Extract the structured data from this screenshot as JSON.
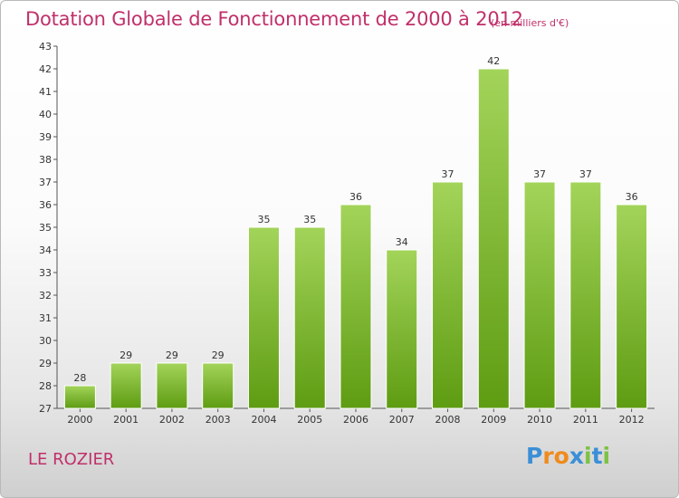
{
  "header": {
    "title": "Dotation Globale de Fonctionnement de 2000 à 2012",
    "subtitle": "(en milliers d'€)"
  },
  "footer": {
    "commune": "LE ROZIER",
    "logo": {
      "letters": [
        "P",
        "r",
        "o",
        "x",
        "i",
        "t",
        "i"
      ],
      "colors": [
        "#3b8fd6",
        "#f08a1c",
        "#f08a1c",
        "#3b8fd6",
        "#7cc244",
        "#3b8fd6",
        "#7cc244"
      ]
    }
  },
  "chart_data": {
    "type": "bar",
    "title": "Dotation Globale de Fonctionnement de 2000 à 2012",
    "subtitle": "(en milliers d'€)",
    "categories": [
      "2000",
      "2001",
      "2002",
      "2003",
      "2004",
      "2005",
      "2006",
      "2007",
      "2008",
      "2009",
      "2010",
      "2011",
      "2012"
    ],
    "values": [
      28,
      29,
      29,
      29,
      35,
      35,
      36,
      34,
      37,
      42,
      37,
      37,
      36
    ],
    "ylim": [
      27,
      43
    ],
    "yticks": [
      27,
      28,
      29,
      30,
      31,
      32,
      33,
      34,
      35,
      36,
      37,
      38,
      39,
      40,
      41,
      42,
      43
    ],
    "grid": false,
    "legend": "none",
    "bar_color_top": "#a3d45a",
    "bar_color_bottom": "#5e9c12"
  }
}
